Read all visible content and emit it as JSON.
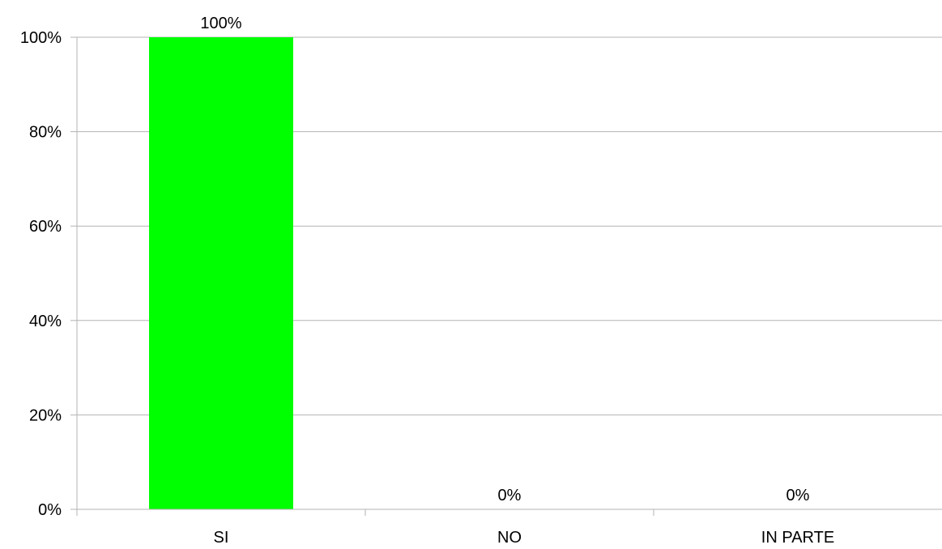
{
  "chart_data": {
    "type": "bar",
    "categories": [
      "SI",
      "NO",
      "IN PARTE"
    ],
    "values": [
      100,
      0,
      0
    ],
    "data_labels": [
      "100%",
      "0%",
      "0%"
    ],
    "title": "",
    "xlabel": "",
    "ylabel": "",
    "ylim": [
      0,
      100
    ],
    "y_ticks": [
      0,
      20,
      40,
      60,
      80,
      100
    ],
    "y_tick_labels": [
      "0%",
      "20%",
      "40%",
      "60%",
      "80%",
      "100%"
    ],
    "grid": true,
    "legend": "none",
    "colors": {
      "bar": "#00ff00",
      "grid": "#b3b3b3",
      "axis": "#b3b3b3"
    }
  }
}
